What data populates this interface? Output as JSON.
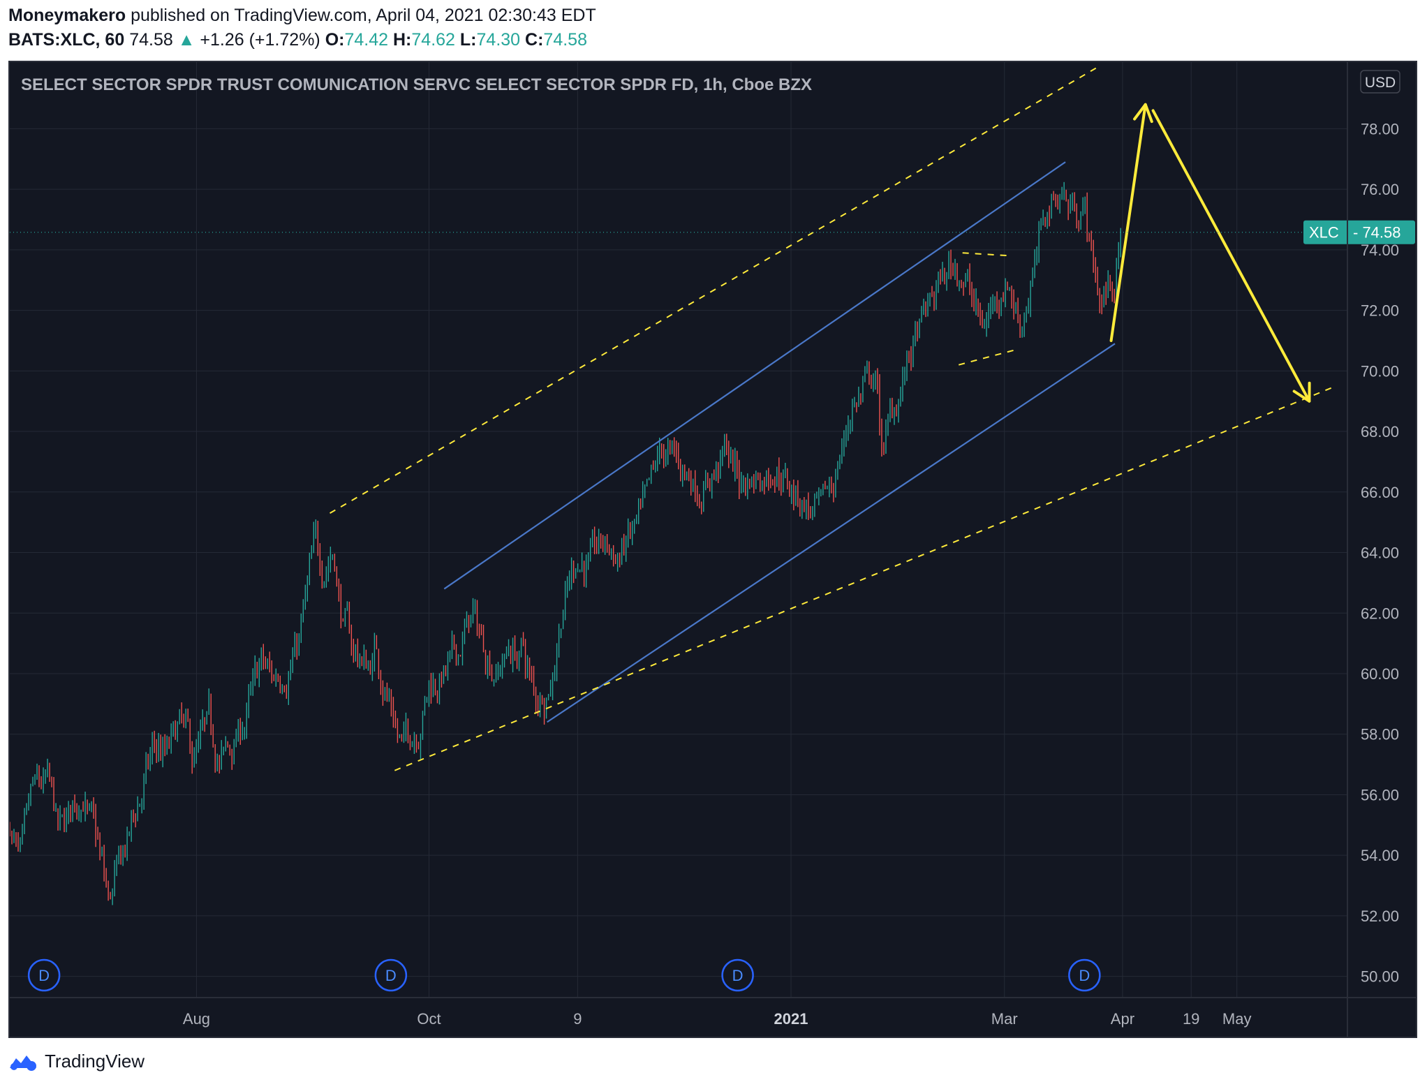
{
  "header": {
    "author": "Moneymakero",
    "published": "published on TradingView.com, April 04, 2021 02:30:43 EDT",
    "symbol": "BATS:XLC, 60",
    "last": "74.58",
    "up_arrow": "▲",
    "change": "+1.26 (+1.72%)",
    "o_label": "O:",
    "o": "74.42",
    "h_label": "H:",
    "h": "74.62",
    "l_label": "L:",
    "l": "74.30",
    "c_label": "C:",
    "c": "74.58"
  },
  "footer": {
    "brand": "TradingView",
    "logo_icon": "tradingview-logo-icon"
  },
  "colors": {
    "background": "#131722",
    "grid": "#252a36",
    "axis_text": "#b2b5be",
    "up": "#26a69a",
    "down": "#ef5350",
    "channel": "#4a78c9",
    "annotation": "#ffeb3b",
    "price_line": "#26a69a"
  },
  "chart_data": {
    "type": "candlestick",
    "title": "SELECT SECTOR SPDR TRUST COMUNICATION SERVC SELECT SECTOR SPDR FD, 1h, Cboe BZX",
    "currency": "USD",
    "ylim": [
      49.3,
      80.2
    ],
    "xlim": [
      "2020-06-13",
      "2021-05-30"
    ],
    "y_ticks": [
      "50.00",
      "52.00",
      "54.00",
      "56.00",
      "58.00",
      "60.00",
      "62.00",
      "64.00",
      "66.00",
      "68.00",
      "70.00",
      "72.00",
      "74.00",
      "76.00",
      "78.00"
    ],
    "x_ticks": [
      {
        "date": "2020-08-01",
        "label": "Aug",
        "bold": false
      },
      {
        "date": "2020-10-01",
        "label": "Oct",
        "bold": false
      },
      {
        "date": "2020-11-09",
        "label": "9",
        "bold": false
      },
      {
        "date": "2021-01-04",
        "label": "2021",
        "bold": true
      },
      {
        "date": "2021-03-01",
        "label": "Mar",
        "bold": false
      },
      {
        "date": "2021-04-01",
        "label": "Apr",
        "bold": false
      },
      {
        "date": "2021-04-19",
        "label": "19",
        "bold": false
      },
      {
        "date": "2021-05-01",
        "label": "May",
        "bold": false
      }
    ],
    "price_label": {
      "symbol": "XLC",
      "value": "74.58",
      "price": 74.58
    },
    "dividend_label": "D",
    "dividends": [
      "2020-06-22",
      "2020-09-21",
      "2020-12-21",
      "2021-03-22"
    ],
    "price_path": [
      [
        "2020-06-13",
        55.0
      ],
      [
        "2020-06-16",
        53.6
      ],
      [
        "2020-06-19",
        55.8
      ],
      [
        "2020-06-23",
        56.2
      ],
      [
        "2020-06-26",
        54.5
      ],
      [
        "2020-06-30",
        55.6
      ],
      [
        "2020-07-02",
        56.2
      ],
      [
        "2020-07-06",
        54.2
      ],
      [
        "2020-07-09",
        52.3
      ],
      [
        "2020-07-13",
        54.0
      ],
      [
        "2020-07-17",
        55.8
      ],
      [
        "2020-07-21",
        57.5
      ],
      [
        "2020-07-24",
        57.2
      ],
      [
        "2020-07-28",
        58.2
      ],
      [
        "2020-07-31",
        57.0
      ],
      [
        "2020-08-04",
        58.0
      ],
      [
        "2020-08-07",
        57.1
      ],
      [
        "2020-08-11",
        57.6
      ],
      [
        "2020-08-14",
        58.6
      ],
      [
        "2020-08-18",
        60.2
      ],
      [
        "2020-08-21",
        59.7
      ],
      [
        "2020-08-25",
        60.4
      ],
      [
        "2020-08-28",
        61.2
      ],
      [
        "2020-09-01",
        64.0
      ],
      [
        "2020-09-03",
        63.5
      ],
      [
        "2020-09-06",
        64.3
      ],
      [
        "2020-09-08",
        62.0
      ],
      [
        "2020-09-11",
        60.8
      ],
      [
        "2020-09-15",
        60.2
      ],
      [
        "2020-09-17",
        60.8
      ],
      [
        "2020-09-21",
        59.0
      ],
      [
        "2020-09-24",
        57.6
      ],
      [
        "2020-09-28",
        58.4
      ],
      [
        "2020-10-01",
        59.7
      ],
      [
        "2020-10-05",
        60.0
      ],
      [
        "2020-10-08",
        60.4
      ],
      [
        "2020-10-12",
        61.9
      ],
      [
        "2020-10-15",
        61.0
      ],
      [
        "2020-10-19",
        60.2
      ],
      [
        "2020-10-22",
        60.8
      ],
      [
        "2020-10-26",
        60.6
      ],
      [
        "2020-10-29",
        59.0
      ],
      [
        "2020-11-02",
        59.9
      ],
      [
        "2020-11-05",
        62.4
      ],
      [
        "2020-11-09",
        64.0
      ],
      [
        "2020-11-12",
        63.6
      ],
      [
        "2020-11-16",
        64.2
      ],
      [
        "2020-11-19",
        63.8
      ],
      [
        "2020-11-24",
        64.6
      ],
      [
        "2020-11-27",
        65.3
      ],
      [
        "2020-12-01",
        67.2
      ],
      [
        "2020-12-04",
        67.0
      ],
      [
        "2020-12-08",
        66.6
      ],
      [
        "2020-12-11",
        66.2
      ],
      [
        "2020-12-15",
        66.8
      ],
      [
        "2020-12-18",
        67.3
      ],
      [
        "2020-12-22",
        66.3
      ],
      [
        "2020-12-28",
        66.7
      ],
      [
        "2020-12-31",
        67.1
      ],
      [
        "2021-01-05",
        66.0
      ],
      [
        "2021-01-08",
        65.6
      ],
      [
        "2021-01-12",
        65.1
      ],
      [
        "2021-01-15",
        66.2
      ],
      [
        "2021-01-20",
        68.9
      ],
      [
        "2021-01-22",
        69.2
      ],
      [
        "2021-01-26",
        69.8
      ],
      [
        "2021-01-28",
        67.3
      ],
      [
        "2021-02-01",
        69.2
      ],
      [
        "2021-02-04",
        70.4
      ],
      [
        "2021-02-08",
        71.6
      ],
      [
        "2021-02-11",
        72.6
      ],
      [
        "2021-02-16",
        73.6
      ],
      [
        "2021-02-19",
        73.1
      ],
      [
        "2021-02-23",
        71.3
      ],
      [
        "2021-02-26",
        72.3
      ],
      [
        "2021-03-02",
        73.2
      ],
      [
        "2021-03-05",
        71.6
      ],
      [
        "2021-03-09",
        73.5
      ],
      [
        "2021-03-12",
        75.2
      ],
      [
        "2021-03-16",
        76.1
      ],
      [
        "2021-03-18",
        75.4
      ],
      [
        "2021-03-22",
        75.6
      ],
      [
        "2021-03-24",
        73.6
      ],
      [
        "2021-03-26",
        72.4
      ],
      [
        "2021-03-30",
        73.1
      ],
      [
        "2021-04-01",
        74.58
      ]
    ]
  },
  "drawings": {
    "channel_upper": [
      [
        "2020-10-05",
        62.8
      ],
      [
        "2021-03-17",
        76.9
      ]
    ],
    "channel_lower": [
      [
        "2020-11-01",
        58.4
      ],
      [
        "2021-03-30",
        70.9
      ]
    ],
    "dashed_upper": [
      [
        "2020-09-05",
        65.3
      ],
      [
        "2021-03-25",
        80.0
      ]
    ],
    "dashed_lower": [
      [
        "2020-09-22",
        56.8
      ],
      [
        "2021-05-27",
        69.5
      ]
    ],
    "wedge_top": [
      [
        "2021-02-18",
        73.9
      ],
      [
        "2021-03-03",
        73.8
      ]
    ],
    "wedge_bottom": [
      [
        "2021-02-17",
        70.2
      ],
      [
        "2021-03-04",
        70.7
      ]
    ],
    "arrow_up": [
      [
        "2021-03-29",
        71.0
      ],
      [
        "2021-04-07",
        78.8
      ]
    ],
    "arrow_down": [
      [
        "2021-04-09",
        78.6
      ],
      [
        "2021-05-20",
        69.0
      ]
    ]
  }
}
